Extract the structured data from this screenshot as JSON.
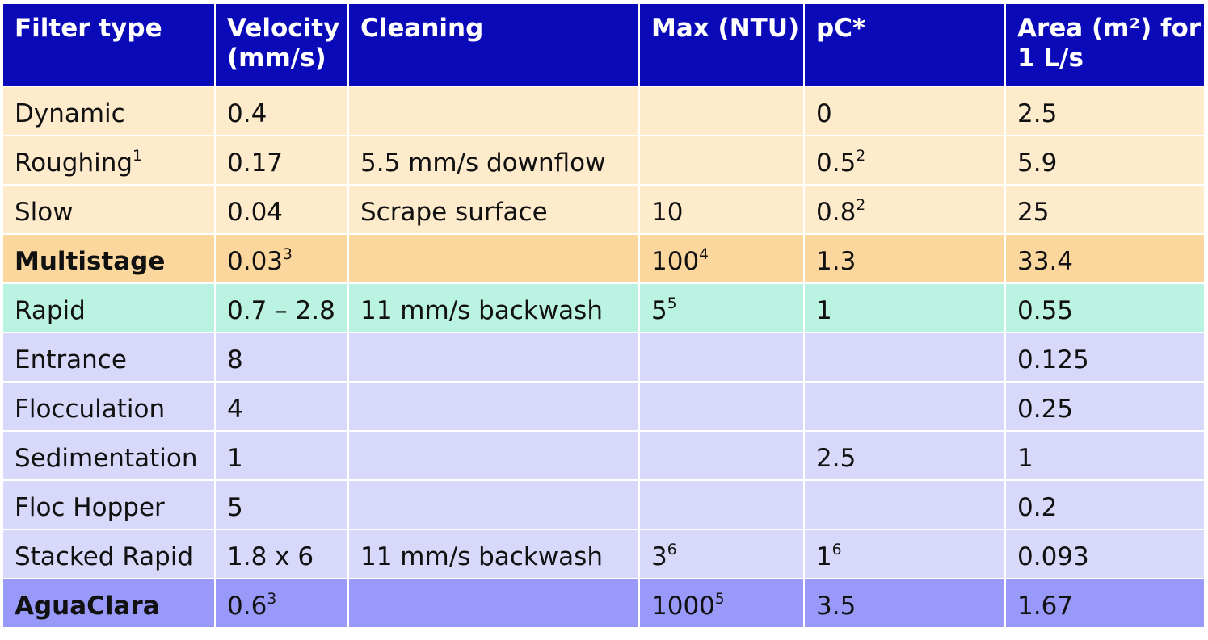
{
  "table": {
    "headers": [
      "Filter type",
      "Velocity (mm/s)",
      "Cleaning",
      "Max (NTU)",
      "pC*",
      "Area (m²) for 1 L/s"
    ],
    "rows": [
      {
        "style": "peach",
        "cells": [
          {
            "text": "Dynamic",
            "sup": ""
          },
          {
            "text": "0.4",
            "sup": ""
          },
          {
            "text": "",
            "sup": ""
          },
          {
            "text": "",
            "sup": ""
          },
          {
            "text": "0",
            "sup": ""
          },
          {
            "text": "2.5",
            "sup": ""
          }
        ]
      },
      {
        "style": "peach",
        "cells": [
          {
            "text": "Roughing",
            "sup": "1"
          },
          {
            "text": "0.17",
            "sup": ""
          },
          {
            "text": "5.5 mm/s downflow",
            "sup": ""
          },
          {
            "text": "",
            "sup": ""
          },
          {
            "text": "0.5",
            "sup": "2"
          },
          {
            "text": "5.9",
            "sup": ""
          }
        ]
      },
      {
        "style": "peach",
        "cells": [
          {
            "text": "Slow",
            "sup": ""
          },
          {
            "text": "0.04",
            "sup": ""
          },
          {
            "text": "Scrape surface",
            "sup": ""
          },
          {
            "text": "10",
            "sup": ""
          },
          {
            "text": "0.8",
            "sup": "2"
          },
          {
            "text": "25",
            "sup": ""
          }
        ]
      },
      {
        "style": "orange bold rule-top",
        "cells": [
          {
            "text": "Multistage",
            "sup": ""
          },
          {
            "text": "0.03",
            "sup": "3"
          },
          {
            "text": "",
            "sup": ""
          },
          {
            "text": "100",
            "sup": "4"
          },
          {
            "text": "1.3",
            "sup": ""
          },
          {
            "text": "33.4",
            "sup": ""
          }
        ]
      },
      {
        "style": "mint",
        "cells": [
          {
            "text": "Rapid",
            "sup": ""
          },
          {
            "text": "0.7 – 2.8",
            "sup": ""
          },
          {
            "text": "11 mm/s backwash",
            "sup": ""
          },
          {
            "text": "5",
            "sup": "5"
          },
          {
            "text": "1",
            "sup": ""
          },
          {
            "text": "0.55",
            "sup": ""
          }
        ]
      },
      {
        "style": "lav",
        "cells": [
          {
            "text": "Entrance",
            "sup": ""
          },
          {
            "text": "8",
            "sup": ""
          },
          {
            "text": "",
            "sup": ""
          },
          {
            "text": "",
            "sup": ""
          },
          {
            "text": "",
            "sup": ""
          },
          {
            "text": "0.125",
            "sup": ""
          }
        ]
      },
      {
        "style": "lav",
        "cells": [
          {
            "text": "Flocculation",
            "sup": ""
          },
          {
            "text": "4",
            "sup": ""
          },
          {
            "text": "",
            "sup": ""
          },
          {
            "text": "",
            "sup": ""
          },
          {
            "text": "",
            "sup": ""
          },
          {
            "text": "0.25",
            "sup": ""
          }
        ]
      },
      {
        "style": "lav",
        "cells": [
          {
            "text": "Sedimentation",
            "sup": ""
          },
          {
            "text": "1",
            "sup": ""
          },
          {
            "text": "",
            "sup": ""
          },
          {
            "text": "",
            "sup": ""
          },
          {
            "text": "2.5",
            "sup": ""
          },
          {
            "text": "1",
            "sup": ""
          }
        ]
      },
      {
        "style": "lav",
        "cells": [
          {
            "text": "Floc Hopper",
            "sup": ""
          },
          {
            "text": "5",
            "sup": ""
          },
          {
            "text": "",
            "sup": ""
          },
          {
            "text": "",
            "sup": ""
          },
          {
            "text": "",
            "sup": ""
          },
          {
            "text": "0.2",
            "sup": ""
          }
        ]
      },
      {
        "style": "lav",
        "cells": [
          {
            "text": "Stacked Rapid",
            "sup": ""
          },
          {
            "text": "1.8 x 6",
            "sup": ""
          },
          {
            "text": "11 mm/s backwash",
            "sup": ""
          },
          {
            "text": "3",
            "sup": "6"
          },
          {
            "text": "1",
            "sup": "6"
          },
          {
            "text": "0.093",
            "sup": ""
          }
        ]
      },
      {
        "style": "blue bold rule-top",
        "cells": [
          {
            "text": "AguaClara",
            "sup": ""
          },
          {
            "text": "0.6",
            "sup": "3"
          },
          {
            "text": "",
            "sup": ""
          },
          {
            "text": "1000",
            "sup": "5"
          },
          {
            "text": "3.5",
            "sup": ""
          },
          {
            "text": "1.67",
            "sup": ""
          }
        ]
      }
    ]
  },
  "colors": {
    "header": "#0a0ab8",
    "peach": "#fdebcc",
    "orange": "#fbd79d",
    "mint": "#baf3e1",
    "lavender": "#d8d8fa",
    "blue": "#9999fa"
  }
}
